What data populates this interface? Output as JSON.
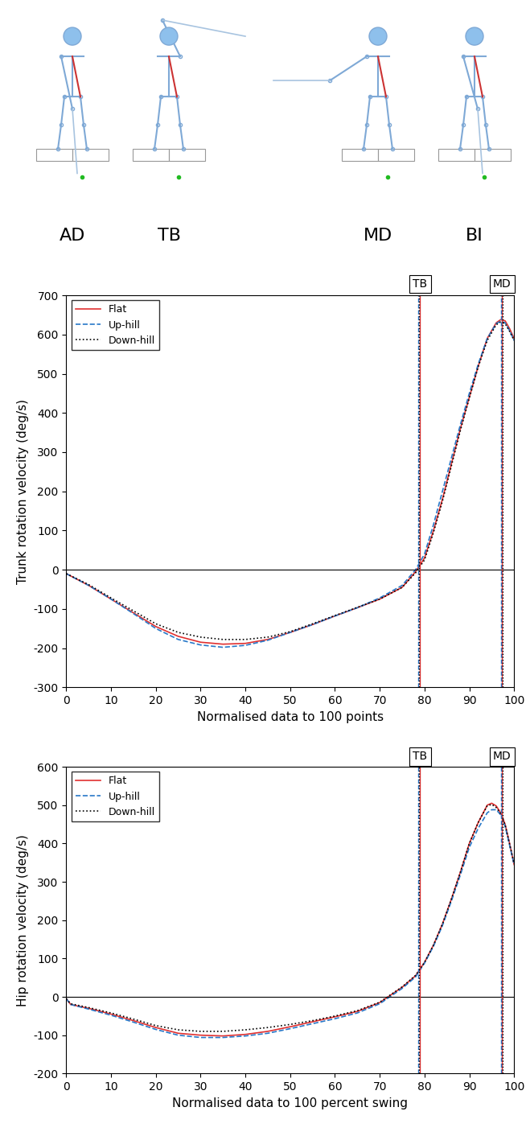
{
  "phases": [
    "AD",
    "TB",
    "MD",
    "BI"
  ],
  "chart_data": [
    {
      "type": "line",
      "xlabel": "Normalised data to 100 points",
      "ylabel": "Trunk rotation velocity (deg/s)",
      "xlim": [
        0,
        100
      ],
      "xticks": [
        0,
        10,
        20,
        30,
        40,
        50,
        60,
        70,
        80,
        90,
        100
      ],
      "ylim": [
        -300,
        700
      ],
      "yticks": [
        -300,
        -200,
        -100,
        0,
        100,
        200,
        300,
        400,
        500,
        600,
        700
      ],
      "legend": "upper left",
      "reference_lines": [
        0
      ],
      "x": [
        0,
        5,
        10,
        15,
        20,
        25,
        30,
        35,
        40,
        45,
        50,
        55,
        60,
        65,
        70,
        75,
        78,
        80,
        82,
        84,
        86,
        88,
        90,
        92,
        94,
        96,
        97,
        98,
        99,
        100
      ],
      "series": [
        {
          "name": "Flat",
          "color": "#e03030",
          "line_style": "solid",
          "values": [
            -10,
            -40,
            -75,
            -110,
            -145,
            -170,
            -185,
            -190,
            -188,
            -178,
            -160,
            -140,
            -118,
            -97,
            -75,
            -45,
            -5,
            30,
            100,
            180,
            270,
            360,
            440,
            520,
            590,
            630,
            638,
            635,
            615,
            590
          ]
        },
        {
          "name": "Up-hill",
          "color": "#2878c8",
          "line_style": "dashed",
          "values": [
            -10,
            -40,
            -75,
            -112,
            -150,
            -178,
            -192,
            -198,
            -193,
            -180,
            -160,
            -140,
            -118,
            -97,
            -72,
            -40,
            0,
            40,
            115,
            200,
            285,
            370,
            450,
            525,
            590,
            628,
            634,
            630,
            610,
            585
          ]
        },
        {
          "name": "Down-hill",
          "color": "#000000",
          "line_style": "dotted",
          "values": [
            -10,
            -38,
            -72,
            -105,
            -138,
            -160,
            -172,
            -178,
            -178,
            -172,
            -158,
            -138,
            -117,
            -96,
            -75,
            -45,
            -8,
            25,
            95,
            175,
            265,
            355,
            438,
            518,
            585,
            625,
            632,
            628,
            608,
            585
          ]
        }
      ],
      "events": [
        {
          "text": "TB",
          "x": [
            79.0,
            78.5,
            78.8
          ]
        },
        {
          "text": "MD",
          "x": [
            97.3,
            97.0,
            97.5
          ]
        }
      ]
    },
    {
      "type": "line",
      "xlabel": "Normalised data to 100 percent swing",
      "ylabel": "Hip rotation velocity (deg/s)",
      "xlim": [
        0,
        100
      ],
      "xticks": [
        0,
        10,
        20,
        30,
        40,
        50,
        60,
        70,
        80,
        90,
        100
      ],
      "ylim": [
        -200,
        600
      ],
      "yticks": [
        -200,
        -100,
        0,
        100,
        200,
        300,
        400,
        500,
        600
      ],
      "legend": "upper left",
      "reference_lines": [
        0
      ],
      "x": [
        0,
        1,
        5,
        10,
        15,
        20,
        25,
        30,
        35,
        40,
        45,
        50,
        55,
        60,
        65,
        70,
        75,
        78,
        80,
        82,
        84,
        86,
        88,
        90,
        92,
        94,
        95,
        96,
        97,
        98,
        99,
        100
      ],
      "series": [
        {
          "name": "Flat",
          "color": "#e03030",
          "line_style": "solid",
          "values": [
            -5,
            -20,
            -30,
            -45,
            -62,
            -80,
            -95,
            -100,
            -102,
            -98,
            -90,
            -78,
            -65,
            -52,
            -38,
            -15,
            25,
            55,
            90,
            135,
            190,
            255,
            325,
            400,
            455,
            500,
            505,
            498,
            480,
            450,
            400,
            345
          ]
        },
        {
          "name": "Up-hill",
          "color": "#2878c8",
          "line_style": "dashed",
          "values": [
            -5,
            -20,
            -32,
            -48,
            -66,
            -85,
            -100,
            -106,
            -106,
            -102,
            -95,
            -83,
            -70,
            -57,
            -42,
            -18,
            22,
            52,
            88,
            132,
            186,
            250,
            318,
            390,
            440,
            480,
            488,
            488,
            475,
            445,
            395,
            345
          ]
        },
        {
          "name": "Down-hill",
          "color": "#000000",
          "line_style": "dotted",
          "values": [
            -5,
            -18,
            -28,
            -42,
            -58,
            -75,
            -86,
            -90,
            -90,
            -86,
            -80,
            -72,
            -62,
            -50,
            -36,
            -14,
            26,
            56,
            90,
            135,
            190,
            255,
            325,
            400,
            455,
            498,
            502,
            494,
            478,
            448,
            398,
            348
          ]
        }
      ],
      "events": [
        {
          "text": "TB",
          "x": [
            79.0,
            78.5,
            78.8
          ]
        },
        {
          "text": "MD",
          "x": [
            97.3,
            97.0,
            97.5
          ]
        }
      ]
    }
  ]
}
